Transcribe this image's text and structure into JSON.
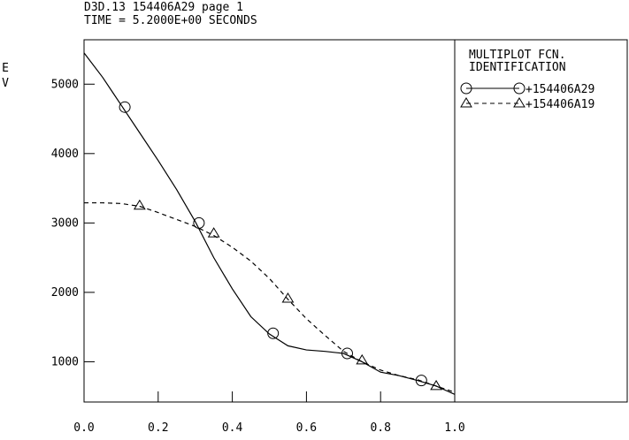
{
  "chart_data": {
    "type": "line",
    "title": "D3D.13 154406A29 page 1",
    "subtitle": "TIME = 5.2000E+00 SECONDS",
    "y_label": "EV",
    "legend_title": [
      "MULTIPLOT FCN.",
      "IDENTIFICATION"
    ],
    "xlim": [
      0,
      1
    ],
    "ylim": [
      420,
      5640
    ],
    "xticks": [
      {
        "value": 0,
        "label": "0.0"
      },
      0.2,
      0.4,
      0.6,
      0.8,
      {
        "value": 1,
        "label": "1.0"
      }
    ],
    "yticks": [
      1000,
      2000,
      3000,
      4000,
      5000
    ],
    "series": [
      {
        "name": "+154406A29",
        "color": "#000000",
        "dash": "solid",
        "marker": "circle",
        "x": [
          0,
          0.05,
          0.1,
          0.15,
          0.2,
          0.25,
          0.3,
          0.35,
          0.4,
          0.45,
          0.5,
          0.55,
          0.6,
          0.65,
          0.7,
          0.75,
          0.8,
          0.85,
          0.9,
          0.95,
          1.0
        ],
        "values": [
          5450,
          5100,
          4700,
          4300,
          3900,
          3480,
          3020,
          2500,
          2050,
          1650,
          1400,
          1230,
          1170,
          1150,
          1120,
          1000,
          850,
          800,
          730,
          650,
          530
        ],
        "markers": {
          "x": [
            0.11,
            0.31,
            0.51,
            0.71,
            0.91
          ],
          "values": [
            4670,
            3000,
            1410,
            1120,
            730
          ]
        }
      },
      {
        "name": "+154406A19",
        "color": "#000000",
        "dash": "dashed",
        "marker": "triangle",
        "x": [
          0,
          0.05,
          0.1,
          0.15,
          0.2,
          0.25,
          0.3,
          0.35,
          0.4,
          0.45,
          0.5,
          0.55,
          0.6,
          0.65,
          0.7,
          0.75,
          0.8,
          0.85,
          0.9,
          0.95,
          1.0
        ],
        "values": [
          3290,
          3290,
          3280,
          3240,
          3150,
          3050,
          2950,
          2820,
          2650,
          2450,
          2200,
          1900,
          1620,
          1380,
          1150,
          1000,
          880,
          800,
          740,
          650,
          560
        ],
        "markers": {
          "x": [
            0.15,
            0.35,
            0.55,
            0.75,
            0.95
          ],
          "values": [
            3250,
            2850,
            1910,
            1020,
            650
          ]
        }
      }
    ]
  }
}
